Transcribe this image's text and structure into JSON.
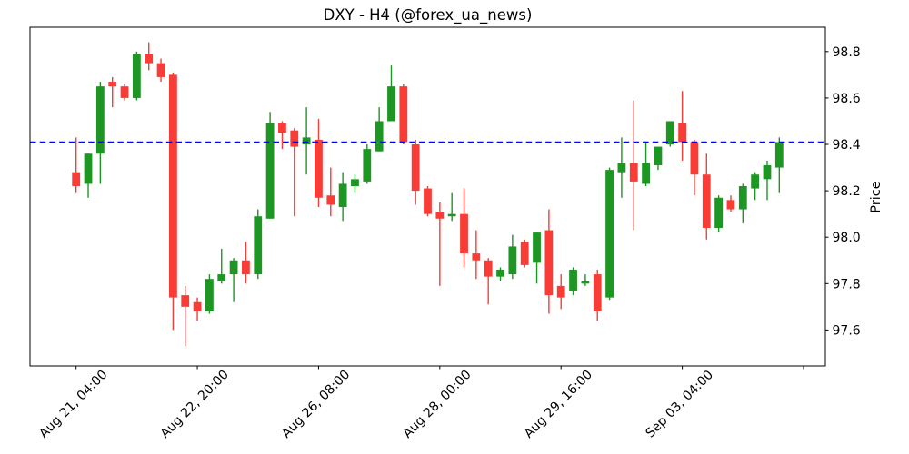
{
  "figure": {
    "title": "DXY - H4 (@forex_ua_news)",
    "background": "#ffffff"
  },
  "chart_data": {
    "type": "candlestick",
    "title": "DXY - H4 (@forex_ua_news)",
    "xlabel": "",
    "ylabel": "Price",
    "grid": false,
    "legend": null,
    "y_ticks": [
      97.6,
      97.8,
      98.0,
      98.2,
      98.4,
      98.6,
      98.8
    ],
    "ylim": [
      97.445,
      98.905
    ],
    "xlim": [
      -3.8,
      61.8
    ],
    "x_tick_indices": [
      0,
      10,
      20,
      30,
      40,
      50,
      60
    ],
    "x_tick_labels": [
      "Aug 21, 04:00",
      "Aug 22, 20:00",
      "Aug 26, 08:00",
      "Aug 28, 00:00",
      "Aug 29, 16:00",
      "Sep 03, 04:00",
      ""
    ],
    "hline": {
      "value": 98.41,
      "style": "dashed"
    },
    "colors": {
      "up": "#1d9623",
      "down": "#f93d36",
      "hline": "#0000ff",
      "axis": "#000000",
      "background": "#ffffff"
    },
    "candles_format": [
      "open",
      "high",
      "low",
      "close"
    ],
    "candles": [
      [
        98.28,
        98.43,
        98.19,
        98.22
      ],
      [
        98.23,
        98.36,
        98.17,
        98.36
      ],
      [
        98.36,
        98.67,
        98.23,
        98.65
      ],
      [
        98.67,
        98.69,
        98.56,
        98.65
      ],
      [
        98.65,
        98.66,
        98.59,
        98.6
      ],
      [
        98.6,
        98.8,
        98.59,
        98.79
      ],
      [
        98.79,
        98.84,
        98.72,
        98.75
      ],
      [
        98.75,
        98.77,
        98.67,
        98.69
      ],
      [
        98.7,
        98.71,
        97.6,
        97.74
      ],
      [
        97.75,
        97.79,
        97.53,
        97.7
      ],
      [
        97.72,
        97.74,
        97.64,
        97.68
      ],
      [
        97.68,
        97.84,
        97.67,
        97.82
      ],
      [
        97.81,
        97.95,
        97.8,
        97.84
      ],
      [
        97.84,
        97.91,
        97.72,
        97.9
      ],
      [
        97.9,
        97.98,
        97.8,
        97.84
      ],
      [
        97.84,
        98.12,
        97.82,
        98.09
      ],
      [
        98.08,
        98.54,
        98.08,
        98.49
      ],
      [
        98.49,
        98.5,
        98.38,
        98.45
      ],
      [
        98.46,
        98.47,
        98.09,
        98.39
      ],
      [
        98.4,
        98.56,
        98.27,
        98.43
      ],
      [
        98.42,
        98.51,
        98.13,
        98.17
      ],
      [
        98.18,
        98.3,
        98.09,
        98.14
      ],
      [
        98.13,
        98.28,
        98.07,
        98.23
      ],
      [
        98.22,
        98.27,
        98.19,
        98.25
      ],
      [
        98.24,
        98.4,
        98.23,
        98.38
      ],
      [
        98.37,
        98.56,
        98.37,
        98.5
      ],
      [
        98.5,
        98.74,
        98.5,
        98.65
      ],
      [
        98.65,
        98.66,
        98.4,
        98.41
      ],
      [
        98.4,
        98.42,
        98.14,
        98.2
      ],
      [
        98.21,
        98.22,
        98.09,
        98.1
      ],
      [
        98.11,
        98.15,
        97.79,
        98.08
      ],
      [
        98.09,
        98.19,
        98.07,
        98.1
      ],
      [
        98.1,
        98.21,
        97.87,
        97.93
      ],
      [
        97.93,
        98.03,
        97.82,
        97.9
      ],
      [
        97.9,
        97.91,
        97.71,
        97.83
      ],
      [
        97.83,
        97.87,
        97.81,
        97.86
      ],
      [
        97.84,
        98.01,
        97.82,
        97.96
      ],
      [
        97.98,
        97.99,
        97.87,
        97.88
      ],
      [
        97.89,
        98.02,
        97.8,
        98.02
      ],
      [
        98.03,
        98.12,
        97.67,
        97.75
      ],
      [
        97.79,
        97.84,
        97.69,
        97.74
      ],
      [
        97.77,
        97.87,
        97.75,
        97.86
      ],
      [
        97.8,
        97.84,
        97.79,
        97.81
      ],
      [
        97.84,
        97.86,
        97.64,
        97.68
      ],
      [
        97.74,
        98.3,
        97.73,
        98.29
      ],
      [
        98.28,
        98.43,
        98.17,
        98.32
      ],
      [
        98.32,
        98.59,
        98.03,
        98.24
      ],
      [
        98.23,
        98.41,
        98.22,
        98.32
      ],
      [
        98.31,
        98.39,
        98.29,
        98.39
      ],
      [
        98.4,
        98.5,
        98.39,
        98.5
      ],
      [
        98.49,
        98.63,
        98.33,
        98.41
      ],
      [
        98.41,
        98.42,
        98.18,
        98.27
      ],
      [
        98.27,
        98.36,
        97.99,
        98.04
      ],
      [
        98.04,
        98.18,
        98.02,
        98.17
      ],
      [
        98.16,
        98.18,
        98.11,
        98.12
      ],
      [
        98.12,
        98.23,
        98.06,
        98.22
      ],
      [
        98.21,
        98.28,
        98.16,
        98.27
      ],
      [
        98.25,
        98.33,
        98.16,
        98.31
      ],
      [
        98.3,
        98.43,
        98.19,
        98.41
      ]
    ]
  }
}
